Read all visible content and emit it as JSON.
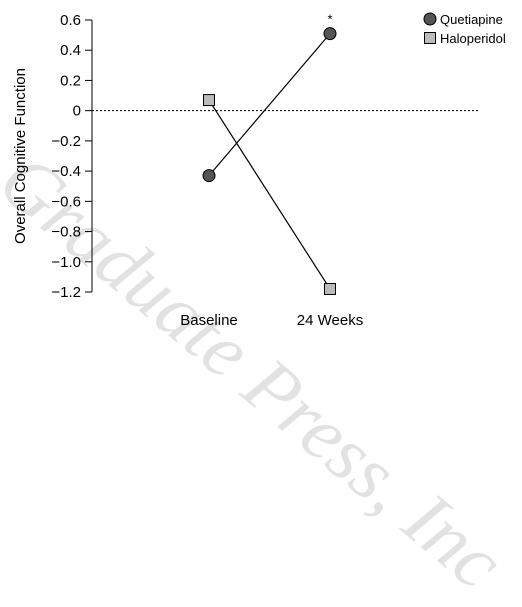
{
  "watermark": "Graduate Press, Inc",
  "chart_data": {
    "type": "line",
    "title": "",
    "xlabel": "",
    "ylabel": "Overall Cognitive Function",
    "categories": [
      "Baseline",
      "24 Weeks"
    ],
    "ylim": [
      -1.2,
      0.6
    ],
    "yticks": [
      0.6,
      0.4,
      0.2,
      0,
      -0.2,
      -0.4,
      -0.6,
      -0.8,
      -1.0,
      -1.2
    ],
    "ytick_labels": [
      "0.6",
      "0.4",
      "0.2",
      "0",
      "−0.2",
      "−0.4",
      "−0.6",
      "−0.8",
      "−1.0",
      "−1.2"
    ],
    "reference_line": 0,
    "grid": false,
    "legend_position": "top-right",
    "annotation": "*",
    "series": [
      {
        "name": "Quetiapine",
        "values": [
          -0.43,
          0.51
        ],
        "marker": "circle",
        "color": "#555555"
      },
      {
        "name": "Haloperidol",
        "values": [
          0.07,
          -1.18
        ],
        "marker": "square",
        "color": "#bbbbbb"
      }
    ]
  }
}
